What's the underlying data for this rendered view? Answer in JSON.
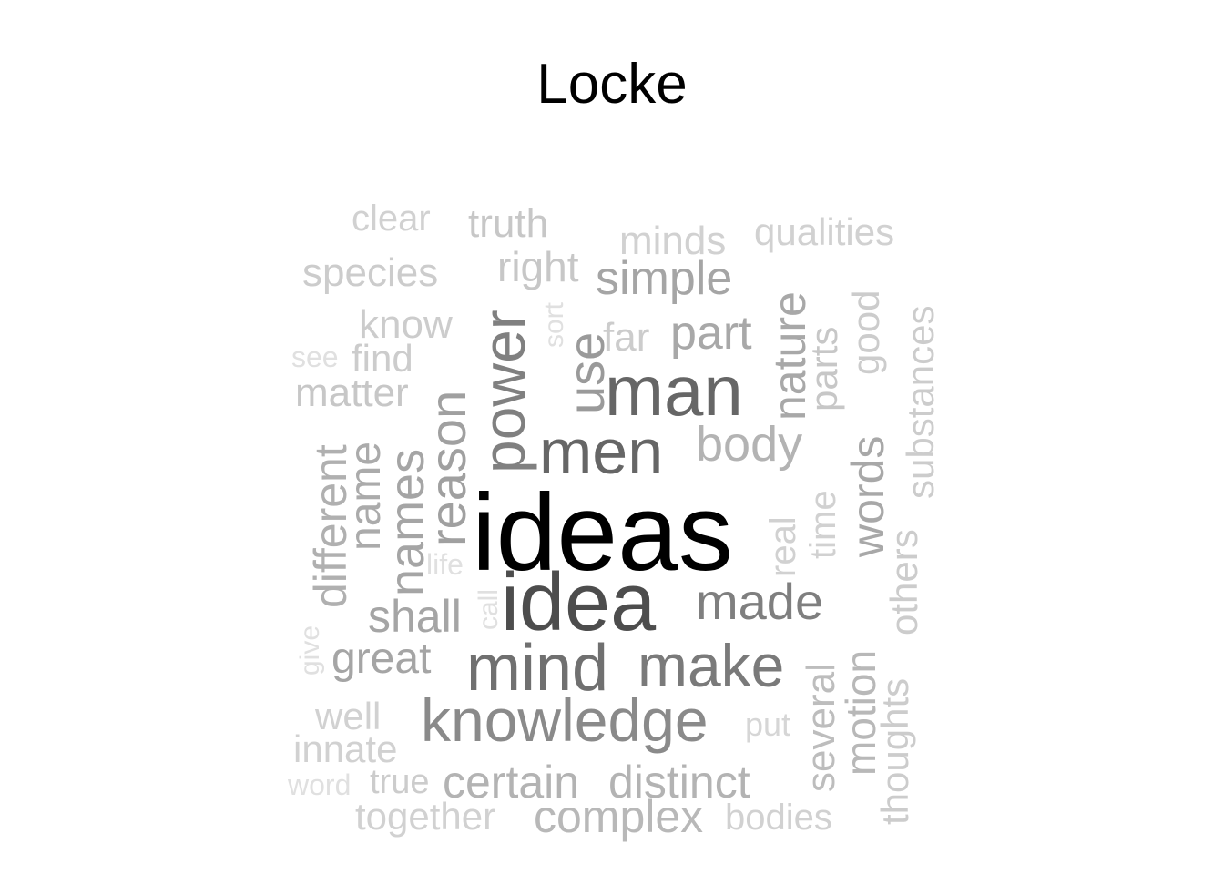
{
  "title": "Locke",
  "words": [
    {
      "text": "ideas",
      "color": "#000000"
    },
    {
      "text": "idea",
      "color": "#4d4d4d"
    },
    {
      "text": "man",
      "color": "#666666"
    },
    {
      "text": "men",
      "color": "#666666"
    },
    {
      "text": "mind",
      "color": "#707070"
    },
    {
      "text": "power",
      "color": "#808080"
    },
    {
      "text": "knowledge",
      "color": "#8a8a8a"
    },
    {
      "text": "make",
      "color": "#7a7a7a"
    },
    {
      "text": "made",
      "color": "#7f7f7f"
    },
    {
      "text": "use",
      "color": "#9a9a9a"
    },
    {
      "text": "reason",
      "color": "#a0a0a0"
    },
    {
      "text": "names",
      "color": "#a5a5a5"
    },
    {
      "text": "name",
      "color": "#ababab"
    },
    {
      "text": "different",
      "color": "#b0b0b0"
    },
    {
      "text": "body",
      "color": "#b3b3b3"
    },
    {
      "text": "part",
      "color": "#a8a8a8"
    },
    {
      "text": "nature",
      "color": "#a8a8a8"
    },
    {
      "text": "words",
      "color": "#a8a8a8"
    },
    {
      "text": "simple",
      "color": "#a5a5a5"
    },
    {
      "text": "shall",
      "color": "#a5a5a5"
    },
    {
      "text": "great",
      "color": "#a5a5a5"
    },
    {
      "text": "certain",
      "color": "#b3b3b3"
    },
    {
      "text": "distinct",
      "color": "#b3b3b3"
    },
    {
      "text": "complex",
      "color": "#b8b8b8"
    },
    {
      "text": "motion",
      "color": "#b8b8b8"
    },
    {
      "text": "several",
      "color": "#bdbdbd"
    },
    {
      "text": "substances",
      "color": "#cccccc"
    },
    {
      "text": "parts",
      "color": "#c7c7c7"
    },
    {
      "text": "good",
      "color": "#cccccc"
    },
    {
      "text": "others",
      "color": "#cccccc"
    },
    {
      "text": "thoughts",
      "color": "#cccccc"
    },
    {
      "text": "time",
      "color": "#d1d1d1"
    },
    {
      "text": "real",
      "color": "#d1d1d1"
    },
    {
      "text": "clear",
      "color": "#d1d1d1"
    },
    {
      "text": "truth",
      "color": "#c7c7c7"
    },
    {
      "text": "minds",
      "color": "#d1d1d1"
    },
    {
      "text": "qualities",
      "color": "#d1d1d1"
    },
    {
      "text": "species",
      "color": "#cccccc"
    },
    {
      "text": "right",
      "color": "#c7c7c7"
    },
    {
      "text": "know",
      "color": "#cccccc"
    },
    {
      "text": "find",
      "color": "#cccccc"
    },
    {
      "text": "matter",
      "color": "#c7c7c7"
    },
    {
      "text": "far",
      "color": "#cccccc"
    },
    {
      "text": "sort",
      "color": "#e0e0e0"
    },
    {
      "text": "see",
      "color": "#e0e0e0"
    },
    {
      "text": "life",
      "color": "#e0e0e0"
    },
    {
      "text": "call",
      "color": "#e0e0e0"
    },
    {
      "text": "give",
      "color": "#e0e0e0"
    },
    {
      "text": "well",
      "color": "#d1d1d1"
    },
    {
      "text": "innate",
      "color": "#d1d1d1"
    },
    {
      "text": "word",
      "color": "#e0e0e0"
    },
    {
      "text": "true",
      "color": "#cccccc"
    },
    {
      "text": "together",
      "color": "#d1d1d1"
    },
    {
      "text": "bodies",
      "color": "#d1d1d1"
    },
    {
      "text": "put",
      "color": "#d6d6d6"
    }
  ]
}
